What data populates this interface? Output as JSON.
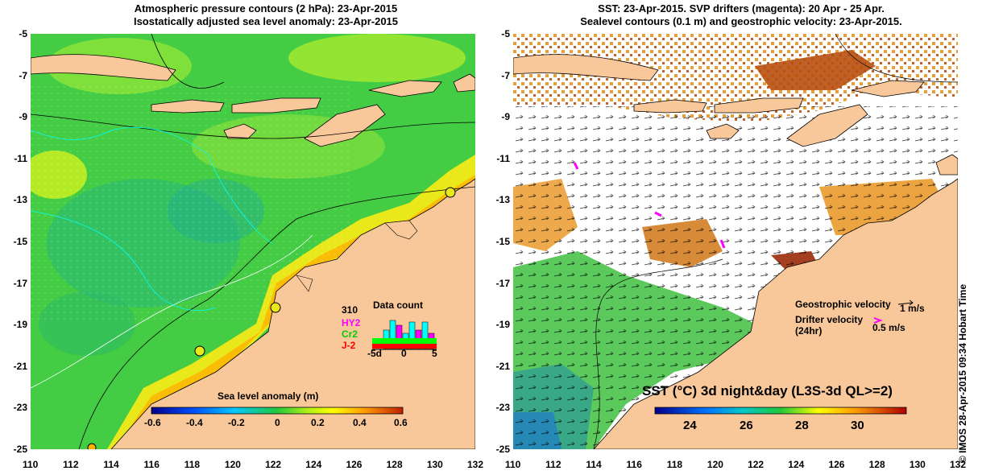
{
  "left_panel": {
    "title_line1": "Atmospheric pressure contours (2 hPa): 23-Apr-2015",
    "title_line2": "Isostatically adjusted sea level anomaly: 23-Apr-2015",
    "colorbar": {
      "label": "Sea level anomaly (m)",
      "ticks": [
        "-0.6",
        "-0.4",
        "-0.2",
        "0",
        "0.2",
        "0.4",
        "0.6"
      ],
      "range": [
        -0.6,
        0.6
      ]
    },
    "data_count": {
      "title": "Data count",
      "satellites": [
        {
          "name": "310",
          "color": "#000000"
        },
        {
          "name": "HY2",
          "color": "#ff00ff"
        },
        {
          "name": "Cr2",
          "color": "#00ff00"
        },
        {
          "name": "J-2",
          "color": "#ff0000"
        }
      ],
      "x_ticks": [
        "-5d",
        "0",
        "5"
      ]
    }
  },
  "right_panel": {
    "title_line1": "SST: 23-Apr-2015. SVP drifters (magenta): 20 Apr - 25 Apr.",
    "title_line2": "Sealevel contours (0.1 m) and geostrophic velocity: 23-Apr-2015.",
    "geostrophic_label": "Geostrophic velocity",
    "geostrophic_scale": "1 m/s",
    "drifter_label_1": "Drifter velocity",
    "drifter_label_2": "(24hr)",
    "drifter_scale": "0.5 m/s",
    "colorbar": {
      "label": "SST (°C) 3d night&day (L3S-3d QL>=2)",
      "ticks": [
        "24",
        "26",
        "28",
        "30"
      ],
      "range": [
        22.5,
        31.5
      ]
    }
  },
  "axes": {
    "x_ticks": [
      "110",
      "112",
      "114",
      "116",
      "118",
      "120",
      "122",
      "124",
      "126",
      "128",
      "130",
      "132"
    ],
    "y_ticks": [
      "-5",
      "-7",
      "-9",
      "-11",
      "-13",
      "-15",
      "-17",
      "-19",
      "-21",
      "-23",
      "-25"
    ],
    "lon_range": [
      110,
      132
    ],
    "lat_range": [
      -25,
      -5
    ]
  },
  "credit": "© IMOS 28-Apr-2015 09:34 Hobart Time",
  "colors": {
    "land": "#f9c89a",
    "ocean_green": "#3fcf3f",
    "sst_orange": "#e8941e",
    "sst_brown": "#b84f10",
    "drifter": "#ff00ff"
  }
}
